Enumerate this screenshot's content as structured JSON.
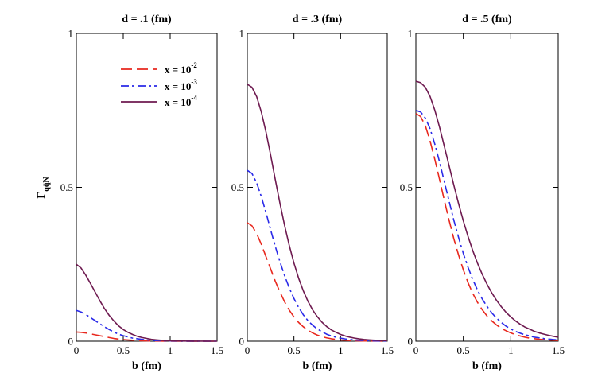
{
  "chart_data": {
    "type": "line",
    "ylabel": "Γ",
    "ylabel_subscript": "qq̄N",
    "xlabel": "b (fm)",
    "xlim": [
      0,
      1.5
    ],
    "ylim": [
      0,
      1
    ],
    "x_ticks": [
      0,
      0.5,
      1,
      1.5
    ],
    "x_tick_labels": [
      "0",
      "0.5",
      "1",
      "1.5"
    ],
    "y_ticks": [
      0,
      0.5,
      1
    ],
    "y_tick_labels": [
      "0",
      "0.5",
      "1"
    ],
    "legend": {
      "placement": "top-left of first panel",
      "entries": [
        {
          "label": "x = 10",
          "exponent": "-2",
          "color": "#e8281e",
          "dash": "dashed"
        },
        {
          "label": "x = 10",
          "exponent": "-3",
          "color": "#2a2ae8",
          "dash": "dashdot"
        },
        {
          "label": "x = 10",
          "exponent": "-4",
          "color": "#6e1a50",
          "dash": "solid"
        }
      ]
    },
    "x": [
      0,
      0.05,
      0.1,
      0.15,
      0.2,
      0.25,
      0.3,
      0.35,
      0.4,
      0.45,
      0.5,
      0.55,
      0.6,
      0.65,
      0.7,
      0.75,
      0.8,
      0.85,
      0.9,
      0.95,
      1.0,
      1.05,
      1.1,
      1.15,
      1.2,
      1.25,
      1.3,
      1.35,
      1.4,
      1.45,
      1.5
    ],
    "panels": [
      {
        "title": "d = .1 (fm)",
        "series": [
          {
            "name": "x = 10^-2",
            "values": [
              0.03,
              0.029,
              0.027,
              0.024,
              0.021,
              0.018,
              0.015,
              0.012,
              0.009,
              0.007,
              0.005,
              0.004,
              0.003,
              0.002,
              0.0015,
              0.001,
              0.0007,
              0.0005,
              0.0003,
              0.0002,
              0.0001,
              0.0001,
              0,
              0,
              0,
              0,
              0,
              0,
              0,
              0,
              0
            ]
          },
          {
            "name": "x = 10^-3",
            "values": [
              0.1,
              0.095,
              0.087,
              0.077,
              0.067,
              0.057,
              0.047,
              0.038,
              0.03,
              0.023,
              0.018,
              0.014,
              0.01,
              0.008,
              0.006,
              0.004,
              0.003,
              0.002,
              0.0015,
              0.001,
              0.0007,
              0.0005,
              0.0003,
              0.0002,
              0.0001,
              0.0001,
              0,
              0,
              0,
              0,
              0
            ]
          },
          {
            "name": "x = 10^-4",
            "values": [
              0.25,
              0.238,
              0.215,
              0.188,
              0.16,
              0.132,
              0.106,
              0.084,
              0.066,
              0.05,
              0.038,
              0.029,
              0.022,
              0.016,
              0.012,
              0.009,
              0.006,
              0.0045,
              0.003,
              0.002,
              0.0015,
              0.001,
              0.0007,
              0.0005,
              0.0003,
              0.0002,
              0.0001,
              0.0001,
              0,
              0,
              0
            ]
          }
        ]
      },
      {
        "title": "d = .3 (fm)",
        "series": [
          {
            "name": "x = 10^-2",
            "values": [
              0.385,
              0.375,
              0.35,
              0.315,
              0.275,
              0.235,
              0.195,
              0.16,
              0.128,
              0.101,
              0.079,
              0.061,
              0.047,
              0.036,
              0.027,
              0.02,
              0.015,
              0.011,
              0.008,
              0.006,
              0.004,
              0.003,
              0.0022,
              0.0016,
              0.0012,
              0.0009,
              0.0006,
              0.0004,
              0.0003,
              0.0002,
              0.0001
            ]
          },
          {
            "name": "x = 10^-3",
            "values": [
              0.555,
              0.545,
              0.515,
              0.47,
              0.418,
              0.362,
              0.308,
              0.258,
              0.213,
              0.173,
              0.139,
              0.11,
              0.086,
              0.067,
              0.052,
              0.04,
              0.031,
              0.023,
              0.017,
              0.013,
              0.01,
              0.0074,
              0.0055,
              0.0041,
              0.003,
              0.0022,
              0.0016,
              0.0012,
              0.0009,
              0.0006,
              0.0004
            ]
          },
          {
            "name": "x = 10^-4",
            "values": [
              0.835,
              0.825,
              0.795,
              0.745,
              0.68,
              0.605,
              0.525,
              0.448,
              0.376,
              0.311,
              0.254,
              0.205,
              0.164,
              0.13,
              0.102,
              0.08,
              0.062,
              0.048,
              0.037,
              0.029,
              0.022,
              0.017,
              0.013,
              0.01,
              0.0076,
              0.0058,
              0.0044,
              0.0033,
              0.0025,
              0.0019,
              0.0014
            ]
          }
        ]
      },
      {
        "title": "d = .5 (fm)",
        "series": [
          {
            "name": "x = 10^-2",
            "values": [
              0.74,
              0.73,
              0.7,
              0.65,
              0.59,
              0.525,
              0.457,
              0.393,
              0.333,
              0.28,
              0.232,
              0.19,
              0.155,
              0.126,
              0.102,
              0.082,
              0.066,
              0.053,
              0.042,
              0.034,
              0.027,
              0.021,
              0.017,
              0.013,
              0.01,
              0.0082,
              0.0064,
              0.005,
              0.0039,
              0.003,
              0.0023
            ]
          },
          {
            "name": "x = 10^-3",
            "values": [
              0.75,
              0.745,
              0.725,
              0.69,
              0.64,
              0.582,
              0.518,
              0.455,
              0.393,
              0.337,
              0.285,
              0.24,
              0.2,
              0.166,
              0.137,
              0.113,
              0.092,
              0.075,
              0.061,
              0.049,
              0.04,
              0.032,
              0.026,
              0.021,
              0.017,
              0.013,
              0.011,
              0.0086,
              0.0069,
              0.0055,
              0.0044
            ]
          },
          {
            "name": "x = 10^-4",
            "values": [
              0.845,
              0.84,
              0.825,
              0.795,
              0.75,
              0.695,
              0.633,
              0.57,
              0.507,
              0.447,
              0.391,
              0.34,
              0.294,
              0.253,
              0.217,
              0.185,
              0.157,
              0.133,
              0.112,
              0.094,
              0.079,
              0.066,
              0.055,
              0.046,
              0.039,
              0.032,
              0.027,
              0.023,
              0.019,
              0.016,
              0.013
            ]
          }
        ]
      }
    ]
  }
}
